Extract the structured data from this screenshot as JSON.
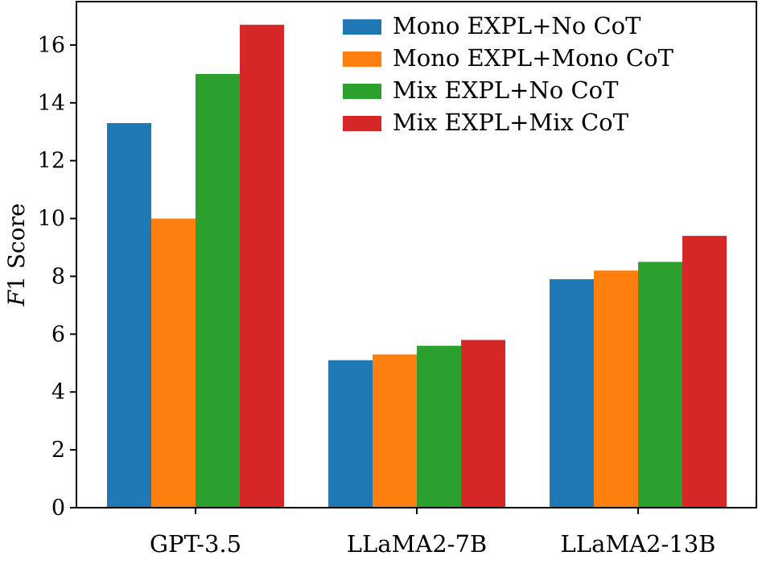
{
  "chart_data": {
    "type": "bar",
    "title": "",
    "xlabel": "",
    "ylabel": "F1 Score",
    "ylabel_italic_part": "F",
    "ylabel_rest": "1 Score",
    "ylim": [
      0,
      17.5
    ],
    "yticks": [
      0,
      2,
      4,
      6,
      8,
      10,
      12,
      14,
      16
    ],
    "ytick_labels": [
      "0",
      "2",
      "4",
      "6",
      "8",
      "10",
      "12",
      "14",
      "16"
    ],
    "categories": [
      "GPT-3.5",
      "LLaMA2-7B",
      "LLaMA2-13B"
    ],
    "series": [
      {
        "name": "Mono EXPL+No CoT",
        "color": "#1f77b4",
        "values": [
          13.3,
          5.1,
          7.9
        ]
      },
      {
        "name": "Mono EXPL+Mono CoT",
        "color": "#ff7f0e",
        "values": [
          10.0,
          5.3,
          8.2
        ]
      },
      {
        "name": "Mix EXPL+No CoT",
        "color": "#2ca02c",
        "values": [
          15.0,
          5.6,
          8.5
        ]
      },
      {
        "name": "Mix EXPL+Mix CoT",
        "color": "#d62728",
        "values": [
          16.7,
          5.8,
          9.4
        ]
      }
    ],
    "legend_position": "top-right",
    "grid": false
  }
}
